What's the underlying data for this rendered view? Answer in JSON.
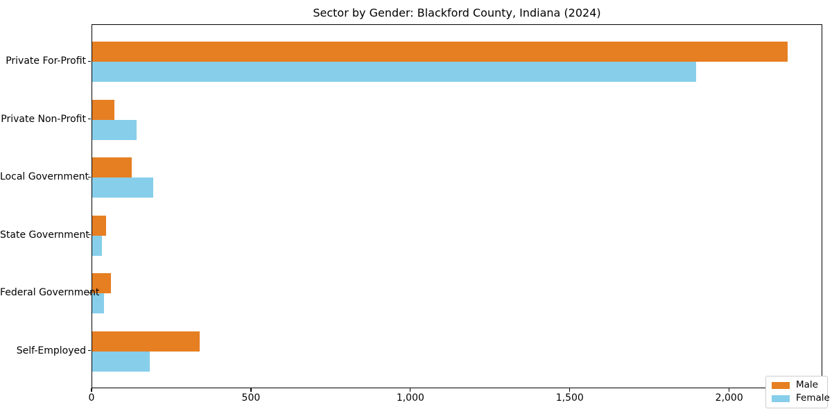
{
  "title": "Sector by Gender: Blackford County, Indiana (2024)",
  "colors": {
    "male": "#e67e22",
    "female": "#87ceeb",
    "axis": "#000000",
    "legend_border": "#cccccc",
    "background": "#ffffff"
  },
  "chart_data": {
    "type": "bar",
    "orientation": "horizontal",
    "title": "Sector by Gender: Blackford County, Indiana (2024)",
    "categories": [
      "Private For-Profit",
      "Private Non-Profit",
      "Local Government",
      "State Government",
      "Federal Government",
      "Self-Employed"
    ],
    "series": [
      {
        "name": "Male",
        "color": "#e67e22",
        "values": [
          2182,
          69,
          125,
          44,
          59,
          337
        ]
      },
      {
        "name": "Female",
        "color": "#87ceeb",
        "values": [
          1894,
          140,
          191,
          31,
          36,
          180
        ]
      }
    ],
    "xlabel": "",
    "ylabel": "",
    "xlim": [
      0,
      2292
    ],
    "x_ticks": [
      0,
      500,
      1000,
      1500,
      2000
    ],
    "x_tick_labels": [
      "0",
      "500",
      "1,000",
      "1,500",
      "2,000"
    ],
    "grid": false,
    "legend_position": "lower right"
  },
  "legend": {
    "items": [
      {
        "label": "Male"
      },
      {
        "label": "Female"
      }
    ]
  }
}
